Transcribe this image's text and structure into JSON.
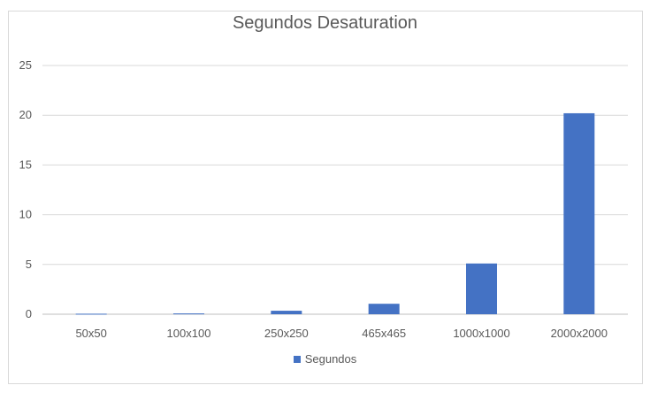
{
  "chart_data": {
    "type": "bar",
    "title": "Segundos Desaturation",
    "categories": [
      "50x50",
      "100x100",
      "250x250",
      "465x465",
      "1000x1000",
      "2000x2000"
    ],
    "series": [
      {
        "name": "Segundos",
        "values": [
          0.05,
          0.08,
          0.35,
          1.05,
          5.1,
          20.2
        ],
        "color": "#4472c4"
      }
    ],
    "ylim": [
      0,
      25
    ],
    "yticks": [
      0,
      5,
      10,
      15,
      20,
      25
    ],
    "grid": true,
    "legend_position": "bottom"
  }
}
